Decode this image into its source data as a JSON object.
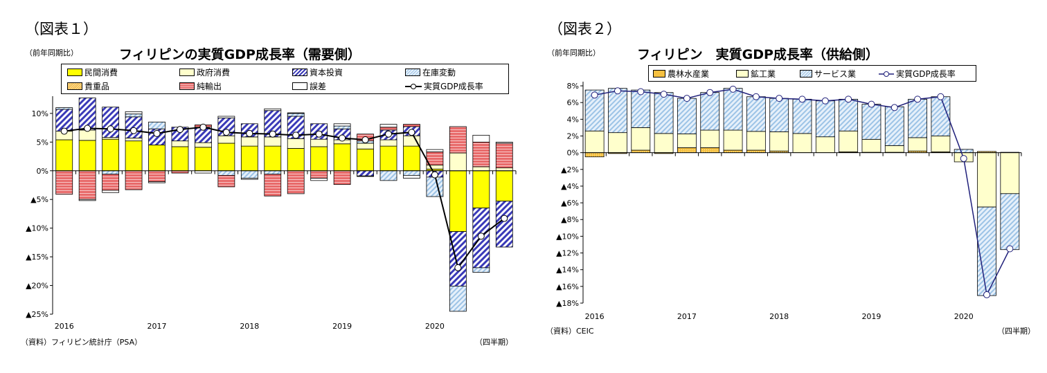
{
  "figure1": {
    "label": "（図表１）",
    "unit": "（前年同期比）",
    "title": "フィリピンの実質GDP成長率（需要側）",
    "source": "（資料）フィリピン統計庁（PSA）",
    "period": "（四半期）"
  },
  "figure2": {
    "label": "（図表２）",
    "unit": "（前年同期比）",
    "title": "フィリピン　実質GDP成長率（供給側）",
    "source": "（資料）CEIC",
    "period": "（四半期）"
  },
  "colors": {
    "private_consumption": "#ffff00",
    "government_consumption": "#ffffcc",
    "investment": "#3a3ab8",
    "inventory": "#9cc3e6",
    "valuables": "#f0b040",
    "net_exports": "#e86a6a",
    "error": "#ffffff",
    "gdp_line_1": "#000000",
    "gdp_line_2": "#1f1f7a"
  },
  "chart_data": [
    {
      "type": "bar",
      "stacked": true,
      "title": "フィリピンの実質GDP成長率（需要側）",
      "xlabel": "（四半期）",
      "ylabel": "（前年同期比）",
      "categories": [
        "2016Q1",
        "2016Q2",
        "2016Q3",
        "2016Q4",
        "2017Q1",
        "2017Q2",
        "2017Q3",
        "2017Q4",
        "2018Q1",
        "2018Q2",
        "2018Q3",
        "2018Q4",
        "2019Q1",
        "2019Q2",
        "2019Q3",
        "2019Q4",
        "2020Q1",
        "2020Q2",
        "2020Q3",
        "2020Q4"
      ],
      "x_tick_labels": [
        "2016",
        "",
        "",
        "",
        "2017",
        "",
        "",
        "",
        "2018",
        "",
        "",
        "",
        "2019",
        "",
        "",
        "",
        "2020",
        "",
        "",
        ""
      ],
      "y_ticks": [
        10,
        5,
        0,
        -5,
        -10,
        -15,
        -20,
        -25
      ],
      "y_tick_labels": [
        "10%",
        "5%",
        "0%",
        "▲5%",
        "▲10%",
        "▲15%",
        "▲20%",
        "▲25%"
      ],
      "ylim": [
        -25,
        13
      ],
      "legend_position": "top",
      "series": [
        {
          "name": "民間消費",
          "pattern": "solid",
          "values": [
            5.4,
            5.3,
            5.5,
            5.2,
            4.5,
            4.2,
            4.1,
            4.8,
            4.3,
            4.3,
            3.9,
            4.2,
            4.7,
            3.8,
            4.3,
            4.3,
            0.3,
            -10.6,
            -6.5,
            -5.3
          ]
        },
        {
          "name": "政府消費",
          "pattern": "solid",
          "values": [
            1.5,
            1.8,
            0.3,
            0.5,
            0,
            1.0,
            0.8,
            1.3,
            1.6,
            1.6,
            1.7,
            1.3,
            0.7,
            1.0,
            1.1,
            1.8,
            0.7,
            3.1,
            0.7,
            0.5
          ]
        },
        {
          "name": "資本投資",
          "pattern": "diagonal-hatch",
          "values": [
            3.8,
            5.6,
            5.3,
            3.7,
            2.8,
            2.4,
            2.7,
            3.1,
            2.3,
            4.6,
            3.9,
            2.7,
            1.9,
            -0.9,
            1.7,
            1.6,
            -1.1,
            -9.5,
            -10.4,
            -8.0
          ]
        },
        {
          "name": "在庫変動",
          "pattern": "diagonal-hatch",
          "values": [
            0.3,
            0,
            -0.6,
            0.5,
            1.2,
            0,
            0,
            -0.8,
            -1.3,
            -0.6,
            0.5,
            0,
            0.5,
            0.4,
            -1.7,
            -0.8,
            -3.4,
            -4.4,
            -0.8,
            0
          ]
        },
        {
          "name": "貴重品",
          "pattern": "diagonal-hatch",
          "values": [
            0,
            0,
            0,
            0,
            0,
            0,
            0,
            0,
            0,
            0,
            0,
            0,
            0,
            0,
            0,
            0,
            0,
            0,
            0,
            0
          ]
        },
        {
          "name": "純輸出",
          "pattern": "horizontal-hatch",
          "values": [
            -4.1,
            -5.0,
            -2.8,
            -3.3,
            -1.9,
            -0.4,
            0.4,
            -2.0,
            0,
            -3.8,
            -4.0,
            -1.3,
            -2.4,
            1.2,
            0.5,
            0.4,
            2.3,
            4.6,
            4.3,
            4.3
          ]
        },
        {
          "name": "誤差",
          "pattern": "solid",
          "values": [
            0,
            -0.2,
            -0.4,
            0.4,
            -0.2,
            0,
            -0.4,
            0.3,
            -0.2,
            0.3,
            0.1,
            -0.4,
            0.4,
            -0.1,
            0.5,
            -0.5,
            0.4,
            0,
            1.2,
            0.2
          ]
        }
      ],
      "line": {
        "name": "実質GDP成長率",
        "values": [
          6.9,
          7.4,
          7.3,
          7.0,
          6.5,
          7.2,
          7.6,
          6.7,
          6.5,
          6.4,
          6.2,
          6.4,
          5.7,
          5.4,
          6.4,
          6.7,
          -0.7,
          -16.9,
          -11.4,
          -8.3
        ]
      }
    },
    {
      "type": "bar",
      "stacked": true,
      "title": "フィリピン　実質GDP成長率（供給側）",
      "xlabel": "（四半期）",
      "ylabel": "（前年同期比）",
      "categories": [
        "2016Q1",
        "2016Q2",
        "2016Q3",
        "2016Q4",
        "2017Q1",
        "2017Q2",
        "2017Q3",
        "2017Q4",
        "2018Q1",
        "2018Q2",
        "2018Q3",
        "2018Q4",
        "2019Q1",
        "2019Q2",
        "2019Q3",
        "2019Q4",
        "2020Q1",
        "2020Q2",
        "2020Q3"
      ],
      "x_tick_labels": [
        "2016",
        "",
        "",
        "",
        "2017",
        "",
        "",
        "",
        "2018",
        "",
        "",
        "",
        "2019",
        "",
        "",
        "",
        "2020",
        "",
        ""
      ],
      "y_ticks": [
        8,
        6,
        4,
        2,
        0,
        -2,
        -4,
        -6,
        -8,
        -10,
        -12,
        -14,
        -16,
        -18
      ],
      "y_tick_labels": [
        "8%",
        "6%",
        "4%",
        "2%",
        "0%",
        "▲2%",
        "▲4%",
        "▲6%",
        "▲8%",
        "▲10%",
        "▲12%",
        "▲14%",
        "▲16%",
        "▲18%"
      ],
      "ylim": [
        -18,
        8.5
      ],
      "legend_position": "top",
      "series": [
        {
          "name": "農林水産業",
          "pattern": "dotted",
          "values": [
            -0.5,
            -0.1,
            0.3,
            -0.1,
            0.6,
            0.6,
            0.3,
            0.3,
            0.2,
            0,
            0,
            0.1,
            0.05,
            0.05,
            0.2,
            0.1,
            0,
            0.15,
            0.05
          ]
        },
        {
          "name": "鉱工業",
          "pattern": "solid",
          "values": [
            2.6,
            2.4,
            2.7,
            2.3,
            1.65,
            2.1,
            2.4,
            2.25,
            2.3,
            2.3,
            1.9,
            2.5,
            1.55,
            0.8,
            1.6,
            1.9,
            -1.1,
            -6.5,
            -4.9
          ]
        },
        {
          "name": "サービス業",
          "pattern": "diagonal-hatch",
          "values": [
            4.9,
            5.3,
            4.5,
            4.9,
            4.25,
            4.5,
            5.0,
            4.15,
            4.0,
            4.1,
            4.3,
            3.8,
            4.2,
            4.65,
            4.6,
            4.7,
            0.4,
            -10.6,
            -6.7
          ]
        }
      ],
      "line": {
        "name": "実質GDP成長率",
        "values": [
          6.9,
          7.4,
          7.3,
          7.0,
          6.5,
          7.2,
          7.6,
          6.7,
          6.5,
          6.4,
          6.2,
          6.4,
          5.8,
          5.4,
          6.4,
          6.7,
          -0.7,
          -17.0,
          -11.5
        ]
      }
    }
  ]
}
